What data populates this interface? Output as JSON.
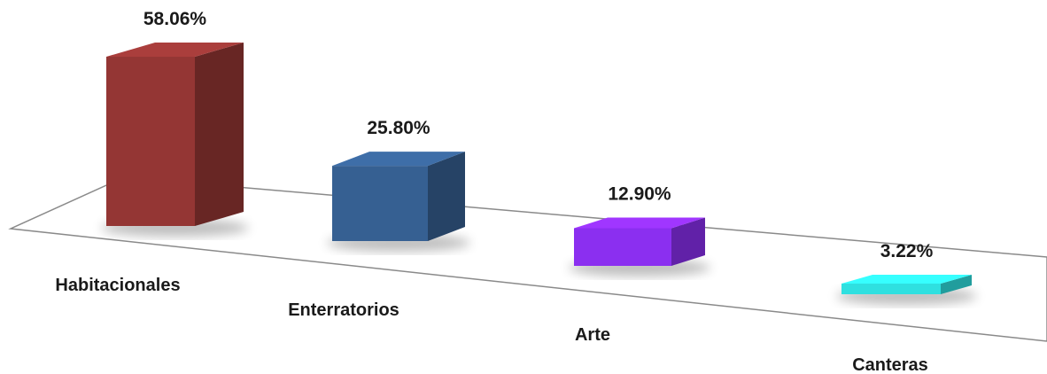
{
  "chart_data": {
    "type": "bar",
    "title": "",
    "xlabel": "",
    "ylabel": "",
    "categories": [
      "Habitacionales",
      "Enterratorios",
      "Arte",
      "Canteras"
    ],
    "values": [
      58.06,
      25.8,
      12.9,
      3.22
    ],
    "value_labels": [
      "58.06%",
      "25.80%",
      "12.90%",
      "3.22%"
    ],
    "unit": "%",
    "ylim": [
      0,
      60
    ],
    "grid": false,
    "legend": "none",
    "style": "3d-perspective",
    "colors": [
      "#943634",
      "#366092",
      "#8b2ff0",
      "#2fe0e0"
    ]
  }
}
